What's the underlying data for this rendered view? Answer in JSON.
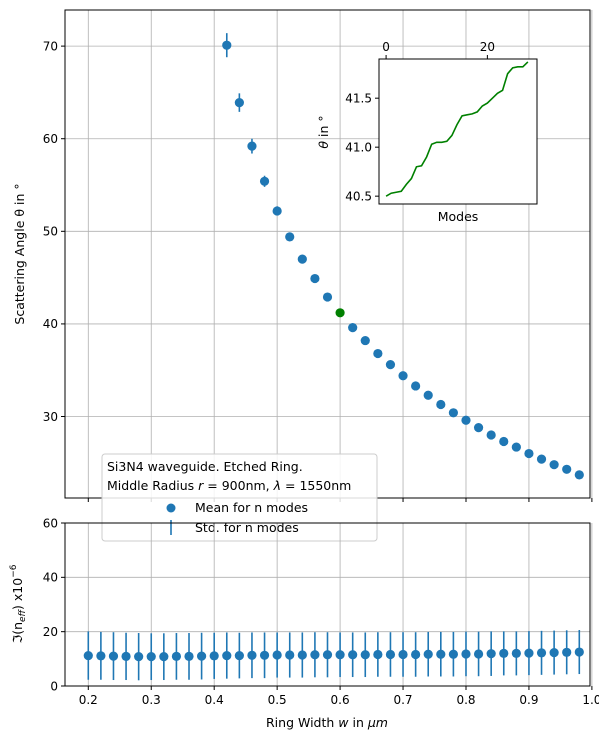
{
  "chart_data": [
    {
      "type": "scatter",
      "ylabel": "Scattering Angle θ in °",
      "xlim": [
        0.163,
        0.997
      ],
      "ylim": [
        21.2,
        73.9
      ],
      "grid": true,
      "x_ticks": [
        "0.2",
        "0.3",
        "0.4",
        "0.5",
        "0.6",
        "0.7",
        "0.8",
        "0.9",
        "1.0"
      ],
      "y_ticks": [
        "30",
        "40",
        "50",
        "60",
        "70"
      ],
      "highlight_color": "#008000",
      "series": [
        {
          "name": "Mean for n modes",
          "color": "#1f77b4",
          "x": [
            0.42,
            0.44,
            0.46,
            0.48,
            0.5,
            0.52,
            0.54,
            0.56,
            0.58,
            0.6,
            0.62,
            0.64,
            0.66,
            0.68,
            0.7,
            0.72,
            0.74,
            0.76,
            0.78,
            0.8,
            0.82,
            0.84,
            0.86,
            0.88,
            0.9,
            0.92,
            0.94,
            0.96,
            0.98
          ],
          "y": [
            70.1,
            63.9,
            59.2,
            55.4,
            52.2,
            49.4,
            47.0,
            44.9,
            42.9,
            41.2,
            39.6,
            38.2,
            36.8,
            35.6,
            34.4,
            33.3,
            32.3,
            31.3,
            30.4,
            29.6,
            28.8,
            28.0,
            27.3,
            26.7,
            26.0,
            25.4,
            24.8,
            24.3,
            23.7
          ],
          "highlight_x": 0.6
        },
        {
          "name": "Std. for n modes",
          "color": "#1f77b4",
          "x": [
            0.42,
            0.44,
            0.46,
            0.48,
            0.5,
            0.52,
            0.54,
            0.56,
            0.58,
            0.6,
            0.62,
            0.64,
            0.66,
            0.68,
            0.7,
            0.72,
            0.74,
            0.76,
            0.78,
            0.8,
            0.82,
            0.84,
            0.86,
            0.88,
            0.9,
            0.92,
            0.94,
            0.96,
            0.98
          ],
          "std": [
            1.3,
            1.0,
            0.8,
            0.6,
            0.5,
            0.4,
            0.35,
            0.3,
            0.3,
            0.25,
            0.25,
            0.2,
            0.2,
            0.2,
            0.2,
            0.2,
            0.2,
            0.2,
            0.2,
            0.15,
            0.15,
            0.15,
            0.15,
            0.15,
            0.15,
            0.15,
            0.15,
            0.15,
            0.15
          ]
        }
      ],
      "legend": {
        "position": "lower-left",
        "title_lines": [
          "Si3N4 waveguide. Etched Ring.",
          "Middle Radius r = 900nm, λ = 1550nm"
        ],
        "entries": [
          "Mean for n modes",
          "Std. for n modes"
        ]
      }
    },
    {
      "type": "line",
      "xlabel": "Modes",
      "ylabel": "θ in °",
      "xlim": [
        -1.4,
        29.8
      ],
      "ylim": [
        40.42,
        41.9
      ],
      "x_ticks": [
        "0",
        "20"
      ],
      "x_tick_position": "top",
      "y_ticks": [
        "40.5",
        "41.0",
        "41.5"
      ],
      "series": [
        {
          "color": "#008000",
          "x": [
            0,
            1,
            2,
            3,
            4,
            5,
            6,
            7,
            8,
            9,
            10,
            11,
            12,
            13,
            14,
            15,
            16,
            17,
            18,
            19,
            20,
            21,
            22,
            23,
            24,
            25,
            26,
            27,
            28
          ],
          "y": [
            40.5,
            40.53,
            40.54,
            40.55,
            40.62,
            40.68,
            40.8,
            40.81,
            40.9,
            41.03,
            41.05,
            41.05,
            41.06,
            41.12,
            41.23,
            41.32,
            41.33,
            41.34,
            41.36,
            41.42,
            41.45,
            41.5,
            41.55,
            41.58,
            41.75,
            41.81,
            41.82,
            41.82,
            41.87
          ]
        }
      ]
    },
    {
      "type": "scatter",
      "xlabel": "Ring Width w in μm",
      "ylabel": "ℑ(n_eff) x10^-6",
      "ylabel_parts": {
        "main": "ℑ(n",
        "sub": "eff",
        "mid": ") x10",
        "sup": "−6"
      },
      "xlim": [
        0.163,
        0.997
      ],
      "ylim": [
        0,
        60
      ],
      "grid": true,
      "x_ticks": [
        "0.2",
        "0.3",
        "0.4",
        "0.5",
        "0.6",
        "0.7",
        "0.8",
        "0.9",
        "1.0"
      ],
      "y_ticks": [
        "0",
        "20",
        "40",
        "60"
      ],
      "series": [
        {
          "color": "#1f77b4",
          "x": [
            0.2,
            0.22,
            0.24,
            0.26,
            0.28,
            0.3,
            0.32,
            0.34,
            0.36,
            0.38,
            0.4,
            0.42,
            0.44,
            0.46,
            0.48,
            0.5,
            0.52,
            0.54,
            0.56,
            0.58,
            0.6,
            0.62,
            0.64,
            0.66,
            0.68,
            0.7,
            0.72,
            0.74,
            0.76,
            0.78,
            0.8,
            0.82,
            0.84,
            0.86,
            0.88,
            0.9,
            0.92,
            0.94,
            0.96,
            0.98
          ],
          "y": [
            11.2,
            11.1,
            11.0,
            10.9,
            10.8,
            10.8,
            10.8,
            10.9,
            10.9,
            11.0,
            11.1,
            11.2,
            11.2,
            11.3,
            11.3,
            11.4,
            11.4,
            11.4,
            11.5,
            11.5,
            11.5,
            11.5,
            11.5,
            11.6,
            11.6,
            11.6,
            11.6,
            11.7,
            11.7,
            11.7,
            11.8,
            11.8,
            11.9,
            12.0,
            12.0,
            12.1,
            12.2,
            12.3,
            12.4,
            12.5
          ],
          "err": [
            8.9,
            8.8,
            8.8,
            8.7,
            8.7,
            8.6,
            8.6,
            8.6,
            8.6,
            8.6,
            8.5,
            8.5,
            8.4,
            8.4,
            8.4,
            8.3,
            8.3,
            8.3,
            8.3,
            8.3,
            8.2,
            8.2,
            8.2,
            8.2,
            8.2,
            8.2,
            8.2,
            8.2,
            8.2,
            8.2,
            8.2,
            8.2,
            8.2,
            8.1,
            8.1,
            8.1,
            8.1,
            8.1,
            8.1,
            8.1
          ]
        }
      ]
    }
  ]
}
